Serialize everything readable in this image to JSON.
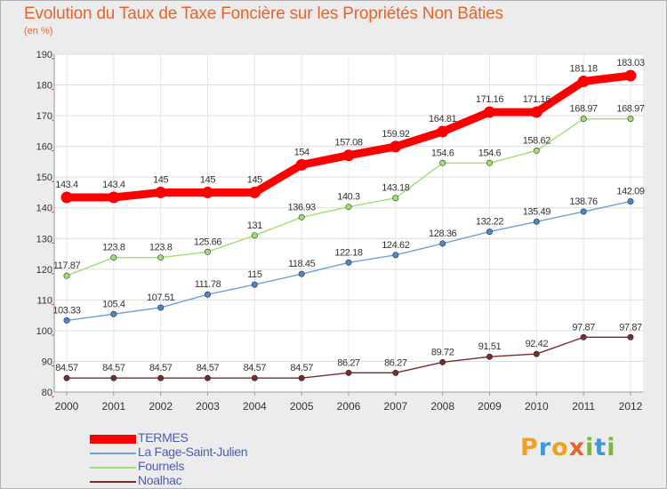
{
  "title": "Evolution du Taux de Taxe Foncière sur les Propriétés Non Bâties",
  "unit": "(en %)",
  "logo": {
    "text": "Proxiti",
    "letters": [
      "P",
      "r",
      "o",
      "x",
      "i",
      "t",
      "i"
    ],
    "colors": [
      "#f0a020",
      "#3a9ad9",
      "#f0a020",
      "#e8622a",
      "#7ab83a",
      "#3a9ad9",
      "#7ab83a"
    ]
  },
  "chart_data": {
    "type": "line",
    "x": [
      "2000",
      "2001",
      "2002",
      "2003",
      "2004",
      "2005",
      "2006",
      "2007",
      "2008",
      "2009",
      "2010",
      "2011",
      "2012"
    ],
    "ylim": [
      80,
      190
    ],
    "yticks": [
      80,
      90,
      100,
      110,
      120,
      130,
      140,
      150,
      160,
      170,
      180,
      190
    ],
    "grid": true,
    "legend": "bottom-left",
    "series": [
      {
        "name": "TERMES",
        "color": "#ff0000",
        "values": [
          143.4,
          143.4,
          145,
          145,
          145,
          154,
          157.08,
          159.92,
          164.81,
          171.16,
          171.16,
          181.18,
          183.03
        ],
        "labels": [
          "143.4",
          "143.4",
          "145",
          "145",
          "145",
          "154",
          "157.08",
          "159.92",
          "164.81",
          "171.16",
          "171.16",
          "181.18",
          "183.03"
        ]
      },
      {
        "name": "La Fage-Saint-Julien",
        "color": "#6fa0d8",
        "values": [
          103.33,
          105.4,
          107.51,
          111.78,
          115,
          118.45,
          122.18,
          124.62,
          128.36,
          132.22,
          135.49,
          138.76,
          142.09
        ],
        "labels": [
          "103.33",
          "105.4",
          "107.51",
          "111.78",
          "115",
          "118.45",
          "122.18",
          "124.62",
          "128.36",
          "132.22",
          "135.49",
          "138.76",
          "142.09"
        ]
      },
      {
        "name": "Fournels",
        "color": "#9ee070",
        "values": [
          117.87,
          123.8,
          123.8,
          125.66,
          131,
          136.93,
          140.3,
          143.18,
          154.6,
          154.6,
          158.62,
          168.97,
          168.97
        ],
        "labels": [
          "117.87",
          "123.8",
          "123.8",
          "125.66",
          "131",
          "136.93",
          "140.3",
          "143.18",
          "154.6",
          "154.6",
          "158.62",
          "168.97",
          "168.97"
        ]
      },
      {
        "name": "Noalhac",
        "color": "#7a2a2a",
        "values": [
          84.57,
          84.57,
          84.57,
          84.57,
          84.57,
          84.57,
          86.27,
          86.27,
          89.72,
          91.51,
          92.42,
          97.87,
          97.87
        ],
        "labels": [
          "84.57",
          "84.57",
          "84.57",
          "84.57",
          "84.57",
          "84.57",
          "86.27",
          "86.27",
          "89.72",
          "91.51",
          "92.42",
          "97.87",
          "97.87"
        ]
      }
    ]
  }
}
